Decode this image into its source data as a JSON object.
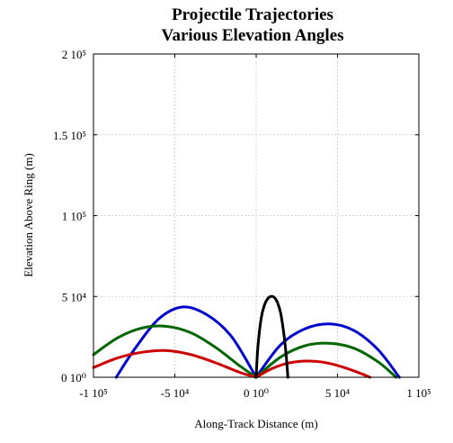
{
  "chart_data": {
    "type": "line",
    "title": "Projectile Trajectories",
    "subtitle": "Various Elevation Angles",
    "xlabel": "Along-Track Distance (m)",
    "ylabel": "Elevation Above Ring (m)",
    "xlim": [
      -100000,
      100000
    ],
    "ylim": [
      0,
      200000
    ],
    "grid": true,
    "legend": "none",
    "x_ticks": [
      {
        "value": -100000,
        "label": "-1 10⁵"
      },
      {
        "value": -50000,
        "label": "-5 10⁴"
      },
      {
        "value": 0,
        "label": "0 10⁰"
      },
      {
        "value": 50000,
        "label": "5 10⁴"
      },
      {
        "value": 100000,
        "label": "1 10⁵"
      }
    ],
    "y_ticks": [
      {
        "value": 0,
        "label": "0 10⁰"
      },
      {
        "value": 50000,
        "label": "5 10⁴"
      },
      {
        "value": 100000,
        "label": "1 10⁵"
      },
      {
        "value": 150000,
        "label": "1.5 10⁵"
      },
      {
        "value": 200000,
        "label": "2 10⁵"
      }
    ],
    "series": [
      {
        "color": "#0000cc",
        "x": [
          0,
          -15000,
          -30000,
          -45000,
          -60000,
          -75000,
          -86000
        ],
        "y": [
          0,
          25000,
          38500,
          43500,
          36000,
          17000,
          0
        ]
      },
      {
        "color": "#0000cc",
        "x": [
          0,
          15000,
          30000,
          45000,
          60000,
          75000,
          88000
        ],
        "y": [
          0,
          20000,
          30000,
          33000,
          29000,
          17000,
          0
        ]
      },
      {
        "color": "#006600",
        "x": [
          -100000,
          -85000,
          -70000,
          -55000,
          -40000,
          -25000,
          -10000,
          0
        ],
        "y": [
          14000,
          24500,
          30500,
          31500,
          27500,
          18500,
          7000,
          0
        ]
      },
      {
        "color": "#006600",
        "x": [
          0,
          15000,
          30000,
          45000,
          60000,
          75000,
          86000
        ],
        "y": [
          0,
          12500,
          19500,
          21000,
          18000,
          9500,
          0
        ]
      },
      {
        "color": "#cc0000",
        "x": [
          -100000,
          -85000,
          -70000,
          -55000,
          -40000,
          -25000,
          -10000,
          0
        ],
        "y": [
          6000,
          12000,
          15500,
          16500,
          14000,
          9000,
          3000,
          0
        ]
      },
      {
        "color": "#cc0000",
        "x": [
          0,
          10000,
          20000,
          30000,
          40000,
          50000,
          60000,
          70000
        ],
        "y": [
          0,
          5500,
          8800,
          10000,
          9500,
          7300,
          4000,
          0
        ]
      },
      {
        "color": "#000000",
        "x": [
          0,
          1000,
          3000,
          5000,
          7000,
          9000,
          11000,
          13000,
          15000,
          17000,
          18500,
          19500
        ],
        "y": [
          0,
          18000,
          36000,
          44500,
          48500,
          50000,
          49500,
          46500,
          40000,
          27000,
          13000,
          0
        ]
      }
    ]
  }
}
